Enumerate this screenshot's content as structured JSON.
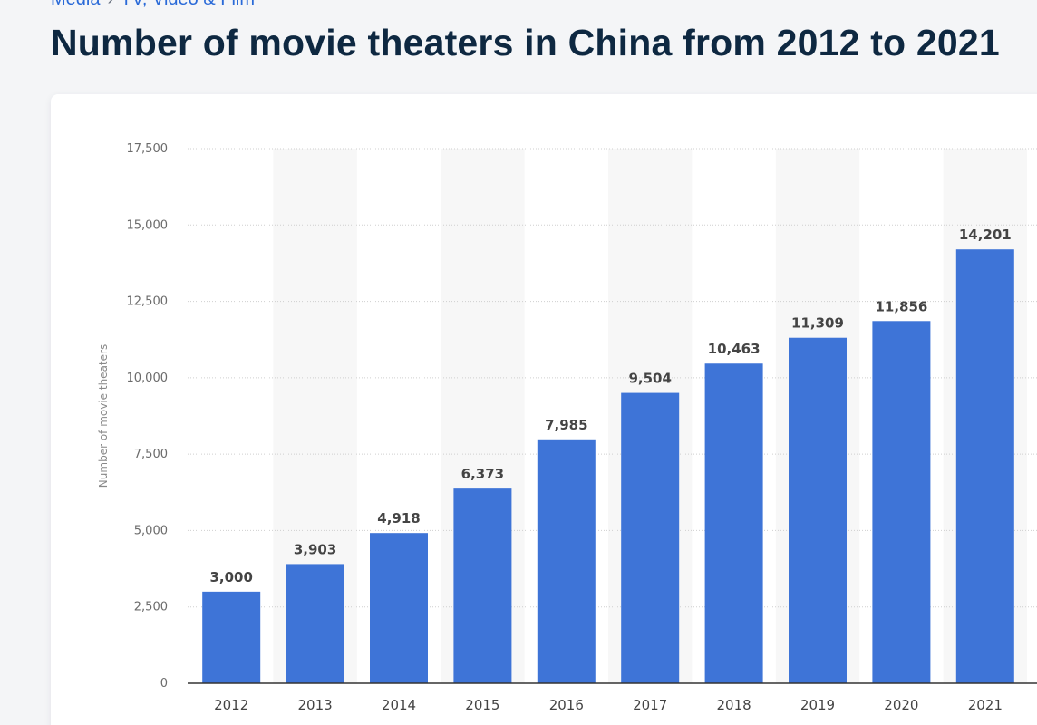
{
  "breadcrumb": {
    "items": [
      "Media",
      "TV, Video & Film"
    ],
    "separator": "›"
  },
  "page_title": "Number of movie theaters in China from 2012 to 2021",
  "colors": {
    "bar": "#3e74d7",
    "band": "#f7f7f7",
    "grid": "#cfcfcf",
    "axis": "#333333"
  },
  "chart_data": {
    "type": "bar",
    "title": "",
    "xlabel": "",
    "ylabel": "Number of movie theaters",
    "categories": [
      "2012",
      "2013",
      "2014",
      "2015",
      "2016",
      "2017",
      "2018",
      "2019",
      "2020",
      "2021"
    ],
    "values": [
      3000,
      3903,
      4918,
      6373,
      7985,
      9504,
      10463,
      11309,
      11856,
      14201
    ],
    "value_labels": [
      "3,000",
      "3,903",
      "4,918",
      "6,373",
      "7,985",
      "9,504",
      "10,463",
      "11,309",
      "11,856",
      "14,201"
    ],
    "ylim": [
      0,
      17500
    ],
    "yticks": [
      0,
      2500,
      5000,
      7500,
      10000,
      12500,
      15000,
      17500
    ],
    "ytick_labels": [
      "0",
      "2,500",
      "5,000",
      "7,500",
      "10,000",
      "12,500",
      "15,000",
      "17,500"
    ],
    "grid": true,
    "gridline_style": "dotted",
    "alternating_bands": true
  }
}
